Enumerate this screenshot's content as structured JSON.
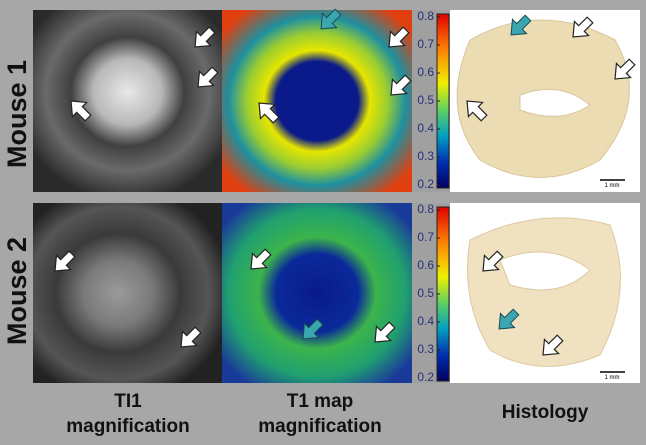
{
  "rows": [
    {
      "label": "Mouse 1"
    },
    {
      "label": "Mouse 2"
    }
  ],
  "columns": [
    [
      "TI1",
      "magnification"
    ],
    [
      "T1 map",
      "magnification"
    ],
    [
      "Histology"
    ]
  ],
  "colorbar": {
    "range": [
      0.2,
      0.8
    ],
    "ticks": [
      0.8,
      0.7,
      0.6,
      0.5,
      0.4,
      0.3,
      0.2
    ]
  },
  "scale_bar": "1 mm"
}
